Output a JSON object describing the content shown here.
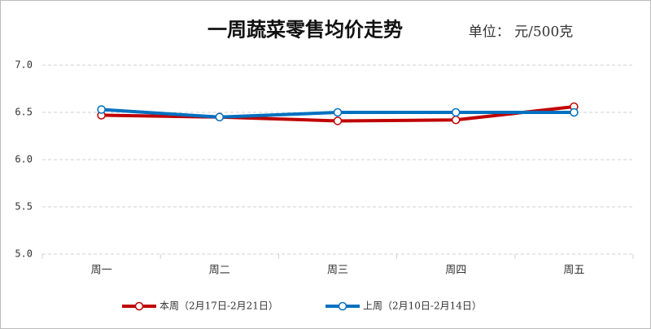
{
  "chart_data": {
    "type": "line",
    "title": "一周蔬菜零售均价走势",
    "subtitle": "单位： 元/500克",
    "categories": [
      "周一",
      "周二",
      "周三",
      "周四",
      "周五"
    ],
    "series": [
      {
        "name": "本周（2月17日-2月21日）",
        "color": "#c00000",
        "values": [
          6.47,
          6.45,
          6.41,
          6.42,
          6.56
        ]
      },
      {
        "name": "上周（2月10日-2月14日）",
        "color": "#0070c0",
        "values": [
          6.53,
          6.45,
          6.5,
          6.5,
          6.5
        ]
      }
    ],
    "ylim": [
      5,
      7
    ],
    "yticks": [
      {
        "value": 5,
        "label": "5.0"
      },
      {
        "value": 5.5,
        "label": "5.5"
      },
      {
        "value": 6,
        "label": "6.0"
      },
      {
        "value": 6.5,
        "label": "6.5"
      },
      {
        "value": 7,
        "label": "7.0"
      }
    ],
    "grid": true,
    "legend": "bottom"
  }
}
